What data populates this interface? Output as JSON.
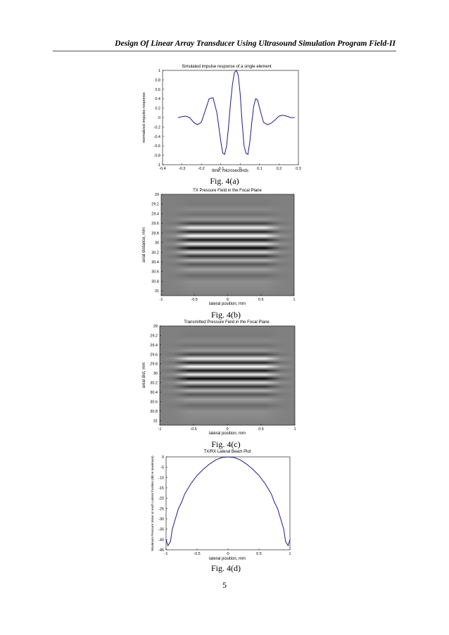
{
  "header": {
    "running_title": "Design Of Linear Array Transducer Using Ultrasound Simulation Program Field-II"
  },
  "page_number": "5",
  "figures": [
    {
      "caption": "Fig. 4(a)"
    },
    {
      "caption": "Fig. 4(b)"
    },
    {
      "caption": "Fig. 4(c)"
    },
    {
      "caption": "Fig. 4(d)"
    }
  ],
  "chart_data": [
    {
      "type": "line",
      "title": "Simulated impulse response of a single element",
      "xlabel": "time, microseconds",
      "ylabel": "normalized impulse response",
      "xlim": [
        -0.4,
        0.3
      ],
      "ylim": [
        -1,
        1
      ],
      "xticks": [
        "-0.4",
        "-0.3",
        "-0.2",
        "-0.1",
        "0",
        "0.1",
        "0.2",
        "0.3"
      ],
      "yticks": [
        "1",
        "0.8",
        "0.6",
        "0.4",
        "0.2",
        "0",
        "-0.2",
        "-0.4",
        "-0.6",
        "-0.8",
        "-1"
      ],
      "color": "#1a1a8c",
      "x": [
        -0.32,
        -0.3,
        -0.28,
        -0.26,
        -0.24,
        -0.22,
        -0.2,
        -0.18,
        -0.16,
        -0.14,
        -0.12,
        -0.1,
        -0.09,
        -0.08,
        -0.07,
        -0.06,
        -0.05,
        -0.04,
        -0.03,
        -0.02,
        -0.01,
        0,
        0.01,
        0.02,
        0.03,
        0.04,
        0.05,
        0.06,
        0.07,
        0.08,
        0.09,
        0.1,
        0.11,
        0.12,
        0.14,
        0.16,
        0.18,
        0.2,
        0.22,
        0.24,
        0.26,
        0.28
      ],
      "y": [
        0.0,
        0.02,
        0.03,
        0.0,
        -0.1,
        -0.15,
        -0.1,
        0.15,
        0.4,
        0.42,
        0.1,
        -0.5,
        -0.75,
        -0.78,
        -0.6,
        -0.2,
        0.3,
        0.7,
        0.95,
        1.0,
        0.9,
        0.5,
        -0.1,
        -0.6,
        -0.76,
        -0.78,
        -0.5,
        -0.1,
        0.25,
        0.4,
        0.37,
        0.2,
        0.05,
        -0.1,
        -0.15,
        -0.12,
        -0.05,
        0.03,
        0.05,
        0.03,
        0.0,
        0.0
      ]
    },
    {
      "type": "heatmap",
      "title": "TX Pressure Field in the Focal Plane",
      "xlabel": "lateral position, mm",
      "ylabel": "axial distance, mm",
      "xlim": [
        -1,
        1
      ],
      "ylim": [
        29,
        31.1
      ],
      "xticks": [
        "-1",
        "-0.5",
        "0",
        "0.5",
        "1"
      ],
      "yticks": [
        "29",
        "29.2",
        "29.4",
        "29.6",
        "29.8",
        "30",
        "30.2",
        "30.4",
        "30.6",
        "30.8",
        "31"
      ],
      "colormap": "gray"
    },
    {
      "type": "heatmap",
      "title": "Transmitted Pressure Field in the Focal Plane",
      "xlabel": "lateral position, mm",
      "ylabel": "axial dist, mm",
      "xlim": [
        -1,
        1
      ],
      "ylim": [
        29,
        31.1
      ],
      "xticks": [
        "-1",
        "-0.5",
        "0",
        "0.5",
        "1"
      ],
      "yticks": [
        "29",
        "29.2",
        "29.4",
        "29.6",
        "29.8",
        "30",
        "30.2",
        "30.4",
        "30.6",
        "30.8",
        "31"
      ],
      "colormap": "gray"
    },
    {
      "type": "line",
      "title": "TX/RX Lateral Beam Plot",
      "xlabel": "lateral position, mm",
      "ylabel": "Maximum Pressure Value at each Lateral Position (dB re maximum)",
      "xlim": [
        -1,
        1
      ],
      "ylim": [
        -45,
        0
      ],
      "xticks": [
        "-1",
        "-0.5",
        "0",
        "0.5",
        "1"
      ],
      "yticks": [
        "0",
        "-5",
        "-10",
        "-15",
        "-20",
        "-25",
        "-30",
        "-35",
        "-40",
        "-45"
      ],
      "color": "#1a1a8c",
      "x": [
        -1.0,
        -0.97,
        -0.93,
        -0.9,
        -0.85,
        -0.8,
        -0.75,
        -0.7,
        -0.6,
        -0.5,
        -0.4,
        -0.3,
        -0.2,
        -0.1,
        0,
        0.1,
        0.2,
        0.3,
        0.4,
        0.5,
        0.6,
        0.7,
        0.75,
        0.8,
        0.85,
        0.9,
        0.93,
        0.97,
        1.0
      ],
      "y": [
        -40,
        -43,
        -41,
        -35,
        -30,
        -25,
        -22,
        -18,
        -13,
        -9,
        -6,
        -3.5,
        -1.5,
        -0.3,
        0,
        -0.3,
        -1.5,
        -3.5,
        -6,
        -9,
        -13,
        -18,
        -22,
        -25,
        -30,
        -35,
        -41,
        -43,
        -40
      ]
    }
  ]
}
